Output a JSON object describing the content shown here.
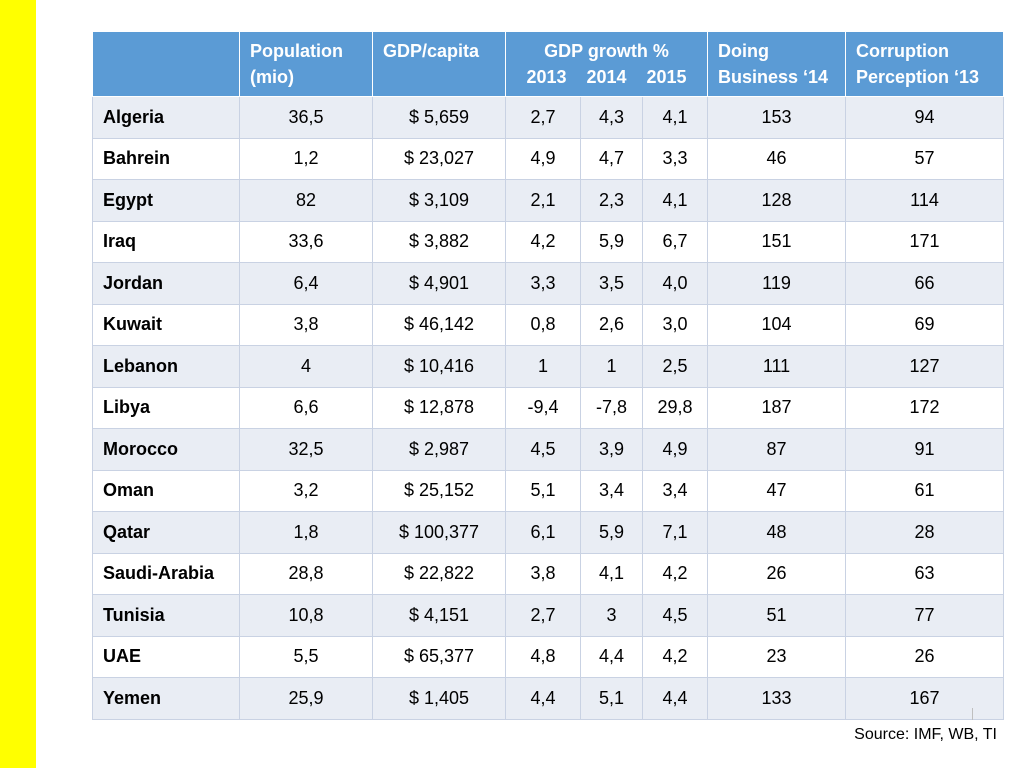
{
  "table": {
    "headers": {
      "country": "",
      "population_line1": "Population",
      "population_line2": "(mio)",
      "gdp_capita": "GDP/capita",
      "growth_title": "GDP growth %",
      "growth_years": [
        "2013",
        "2014",
        "2015"
      ],
      "doing_line1": "Doing",
      "doing_line2": "Business ‘14",
      "corruption_line1": "Corruption",
      "corruption_line2": "Perception ‘13"
    },
    "rows": [
      {
        "country": "Algeria",
        "population": "36,5",
        "gdp": "$ 5,659",
        "g2013": "2,7",
        "g2014": "4,3",
        "g2015": "4,1",
        "doing": "153",
        "corruption": "94"
      },
      {
        "country": "Bahrein",
        "population": "1,2",
        "gdp": "$ 23,027",
        "g2013": "4,9",
        "g2014": "4,7",
        "g2015": "3,3",
        "doing": "46",
        "corruption": "57"
      },
      {
        "country": "Egypt",
        "population": "82",
        "gdp": "$ 3,109",
        "g2013": "2,1",
        "g2014": "2,3",
        "g2015": "4,1",
        "doing": "128",
        "corruption": "114"
      },
      {
        "country": "Iraq",
        "population": "33,6",
        "gdp": "$ 3,882",
        "g2013": "4,2",
        "g2014": "5,9",
        "g2015": "6,7",
        "doing": "151",
        "corruption": "171"
      },
      {
        "country": "Jordan",
        "population": "6,4",
        "gdp": "$ 4,901",
        "g2013": "3,3",
        "g2014": "3,5",
        "g2015": "4,0",
        "doing": "119",
        "corruption": "66"
      },
      {
        "country": "Kuwait",
        "population": "3,8",
        "gdp": "$ 46,142",
        "g2013": "0,8",
        "g2014": "2,6",
        "g2015": "3,0",
        "doing": "104",
        "corruption": "69"
      },
      {
        "country": "Lebanon",
        "population": "4",
        "gdp": "$ 10,416",
        "g2013": "1",
        "g2014": "1",
        "g2015": "2,5",
        "doing": "111",
        "corruption": "127"
      },
      {
        "country": "Libya",
        "population": "6,6",
        "gdp": "$ 12,878",
        "g2013": "-9,4",
        "g2014": "-7,8",
        "g2015": "29,8",
        "doing": "187",
        "corruption": "172"
      },
      {
        "country": "Morocco",
        "population": "32,5",
        "gdp": "$ 2,987",
        "g2013": "4,5",
        "g2014": "3,9",
        "g2015": "4,9",
        "doing": "87",
        "corruption": "91"
      },
      {
        "country": "Oman",
        "population": "3,2",
        "gdp": "$ 25,152",
        "g2013": "5,1",
        "g2014": "3,4",
        "g2015": "3,4",
        "doing": "47",
        "corruption": "61"
      },
      {
        "country": "Qatar",
        "population": "1,8",
        "gdp": "$ 100,377",
        "g2013": "6,1",
        "g2014": "5,9",
        "g2015": "7,1",
        "doing": "48",
        "corruption": "28"
      },
      {
        "country": "Saudi-Arabia",
        "population": "28,8",
        "gdp": "$ 22,822",
        "g2013": "3,8",
        "g2014": "4,1",
        "g2015": "4,2",
        "doing": "26",
        "corruption": "63"
      },
      {
        "country": "Tunisia",
        "population": "10,8",
        "gdp": "$ 4,151",
        "g2013": "2,7",
        "g2014": "3",
        "g2015": "4,5",
        "doing": "51",
        "corruption": "77"
      },
      {
        "country": "UAE",
        "population": "5,5",
        "gdp": "$ 65,377",
        "g2013": "4,8",
        "g2014": "4,4",
        "g2015": "4,2",
        "doing": "23",
        "corruption": "26"
      },
      {
        "country": "Yemen",
        "population": "25,9",
        "gdp": "$ 1,405",
        "g2013": "4,4",
        "g2014": "5,1",
        "g2015": "4,4",
        "doing": "133",
        "corruption": "167"
      }
    ]
  },
  "source": "Source: IMF, WB, TI",
  "colors": {
    "header_bg": "#5b9bd5",
    "row_alt_bg": "#e9edf4",
    "left_bar": "#ffff00"
  }
}
